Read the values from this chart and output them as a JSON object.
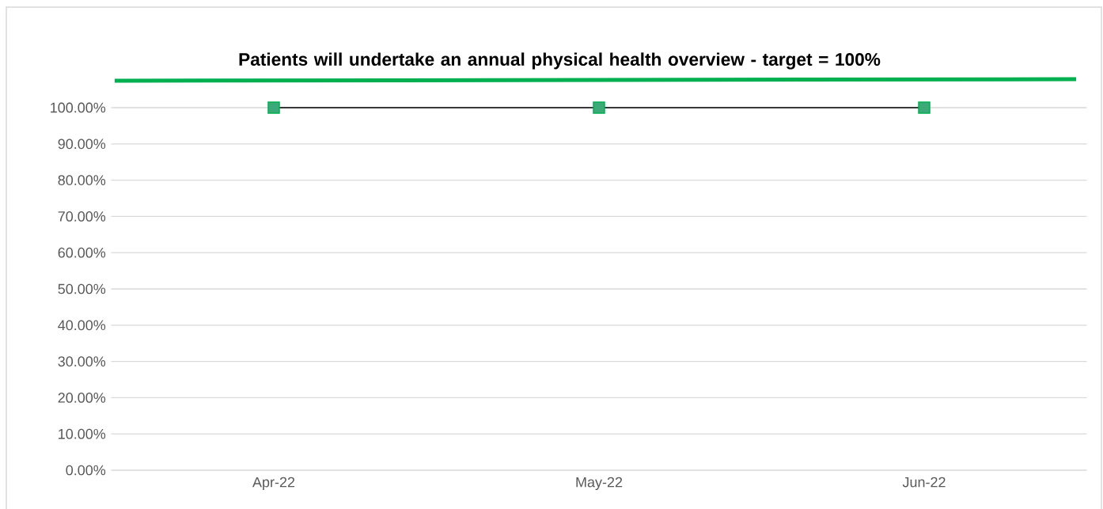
{
  "chart_data": {
    "type": "line",
    "title": "Patients will undertake an annual physical health overview -  target = 100%",
    "categories": [
      "Apr-22",
      "May-22",
      "Jun-22"
    ],
    "series": [
      {
        "color": "#000000",
        "values": [
          100,
          100,
          100
        ]
      }
    ],
    "marker": "square",
    "ylim": [
      0,
      100
    ],
    "yticks": [
      {
        "value": 0,
        "label": "0.00%"
      },
      {
        "value": 10,
        "label": "10.00%"
      },
      {
        "value": 20,
        "label": "20.00%"
      },
      {
        "value": 30,
        "label": "30.00%"
      },
      {
        "value": 40,
        "label": "40.00%"
      },
      {
        "value": 50,
        "label": "50.00%"
      },
      {
        "value": 60,
        "label": "60.00%"
      },
      {
        "value": 70,
        "label": "70.00%"
      },
      {
        "value": 80,
        "label": "80.00%"
      },
      {
        "value": 90,
        "label": "90.00%"
      },
      {
        "value": 100,
        "label": "100.00%"
      }
    ],
    "grid": "y"
  }
}
